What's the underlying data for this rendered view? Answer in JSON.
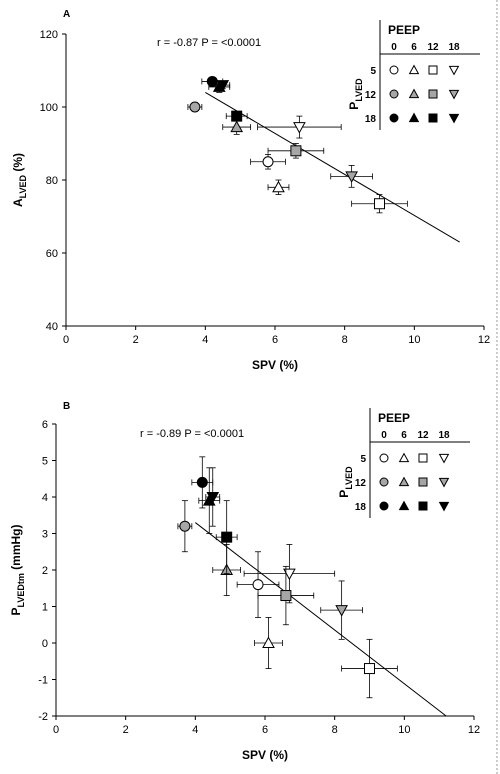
{
  "chart_data": [
    {
      "type": "scatter",
      "panel_label": "A",
      "annotation": "r = -0.87 P = <0.0001",
      "xlabel": "SPV (%)",
      "ylabel_main": "A",
      "ylabel_sub": "LVED",
      "ylabel_unit": " (%)",
      "xlim": [
        0,
        12
      ],
      "ylim": [
        40,
        120
      ],
      "xticks": [
        "0",
        "2",
        "4",
        "6",
        "8",
        "10",
        "12"
      ],
      "yticks": [
        "40",
        "60",
        "80",
        "100",
        "120"
      ],
      "regression": {
        "x1": 4.0,
        "y1": 104.0,
        "x2": 11.3,
        "y2": 63.0
      },
      "points": [
        {
          "peep": 0,
          "plved": 5,
          "x": 5.8,
          "y": 85,
          "xerr": 0.5,
          "yerr": 2.0
        },
        {
          "peep": 6,
          "plved": 5,
          "x": 6.1,
          "y": 78,
          "xerr": 0.3,
          "yerr": 2.0
        },
        {
          "peep": 12,
          "plved": 5,
          "x": 9.0,
          "y": 73.5,
          "xerr": 0.8,
          "yerr": 2.5
        },
        {
          "peep": 18,
          "plved": 5,
          "x": 6.7,
          "y": 94.5,
          "xerr": 1.2,
          "yerr": 3.0
        },
        {
          "peep": 0,
          "plved": 12,
          "x": 3.7,
          "y": 100,
          "xerr": 0.2,
          "yerr": 1.0
        },
        {
          "peep": 6,
          "plved": 12,
          "x": 4.9,
          "y": 94.5,
          "xerr": 0.4,
          "yerr": 2.0
        },
        {
          "peep": 12,
          "plved": 12,
          "x": 6.6,
          "y": 88,
          "xerr": 0.8,
          "yerr": 2.0
        },
        {
          "peep": 18,
          "plved": 12,
          "x": 8.2,
          "y": 81,
          "xerr": 0.6,
          "yerr": 3.0
        },
        {
          "peep": 0,
          "plved": 18,
          "x": 4.2,
          "y": 107,
          "xerr": 0.3,
          "yerr": 1.0
        },
        {
          "peep": 6,
          "plved": 18,
          "x": 4.4,
          "y": 105.5,
          "xerr": 0.3,
          "yerr": 1.5
        },
        {
          "peep": 12,
          "plved": 18,
          "x": 4.9,
          "y": 97.5,
          "xerr": 0.3,
          "yerr": 1.0
        },
        {
          "peep": 18,
          "plved": 18,
          "x": 4.5,
          "y": 106,
          "xerr": 0.2,
          "yerr": 1.0
        }
      ]
    },
    {
      "type": "scatter",
      "panel_label": "B",
      "annotation": "r = -0.89 P = <0.0001",
      "xlabel": "SPV (%)",
      "ylabel_main": "P",
      "ylabel_sub": "LVEDtm",
      "ylabel_unit": " (mmHg)",
      "xlim": [
        0,
        12
      ],
      "ylim": [
        -2,
        6
      ],
      "xticks": [
        "0",
        "2",
        "4",
        "6",
        "8",
        "10",
        "12"
      ],
      "yticks": [
        "-2",
        "-1",
        "0",
        "1",
        "2",
        "3",
        "4",
        "5",
        "6"
      ],
      "regression": {
        "x1": 4.0,
        "y1": 3.3,
        "x2": 11.2,
        "y2": -2.0
      },
      "points": [
        {
          "peep": 0,
          "plved": 5,
          "x": 5.8,
          "y": 1.6,
          "xerr": 0.6,
          "yerr": 0.9
        },
        {
          "peep": 6,
          "plved": 5,
          "x": 6.1,
          "y": 0.0,
          "xerr": 0.4,
          "yerr": 0.7
        },
        {
          "peep": 12,
          "plved": 5,
          "x": 9.0,
          "y": -0.7,
          "xerr": 0.8,
          "yerr": 0.8
        },
        {
          "peep": 18,
          "plved": 5,
          "x": 6.7,
          "y": 1.9,
          "xerr": 1.3,
          "yerr": 0.8
        },
        {
          "peep": 0,
          "plved": 12,
          "x": 3.7,
          "y": 3.2,
          "xerr": 0.2,
          "yerr": 0.7
        },
        {
          "peep": 6,
          "plved": 12,
          "x": 4.9,
          "y": 2.0,
          "xerr": 0.4,
          "yerr": 0.7
        },
        {
          "peep": 12,
          "plved": 12,
          "x": 6.6,
          "y": 1.3,
          "xerr": 0.8,
          "yerr": 0.8
        },
        {
          "peep": 18,
          "plved": 12,
          "x": 8.2,
          "y": 0.9,
          "xerr": 0.6,
          "yerr": 0.8
        },
        {
          "peep": 0,
          "plved": 18,
          "x": 4.2,
          "y": 4.4,
          "xerr": 0.3,
          "yerr": 0.7
        },
        {
          "peep": 6,
          "plved": 18,
          "x": 4.4,
          "y": 3.9,
          "xerr": 0.3,
          "yerr": 0.9
        },
        {
          "peep": 12,
          "plved": 18,
          "x": 4.9,
          "y": 2.9,
          "xerr": 0.3,
          "yerr": 1.0
        },
        {
          "peep": 18,
          "plved": 18,
          "x": 4.5,
          "y": 4.0,
          "xerr": 0.2,
          "yerr": 0.8
        }
      ]
    }
  ],
  "legend": {
    "title": "PEEP",
    "col_headers": [
      "0",
      "6",
      "12",
      "18"
    ],
    "row_headers": [
      "5",
      "12",
      "18"
    ],
    "row_axis_main": "P",
    "row_axis_sub": "LVED"
  },
  "colors": {
    "plved_5": "#ffffff",
    "plved_12": "#a6a6a6",
    "plved_18": "#000000",
    "stroke": "#000000"
  }
}
